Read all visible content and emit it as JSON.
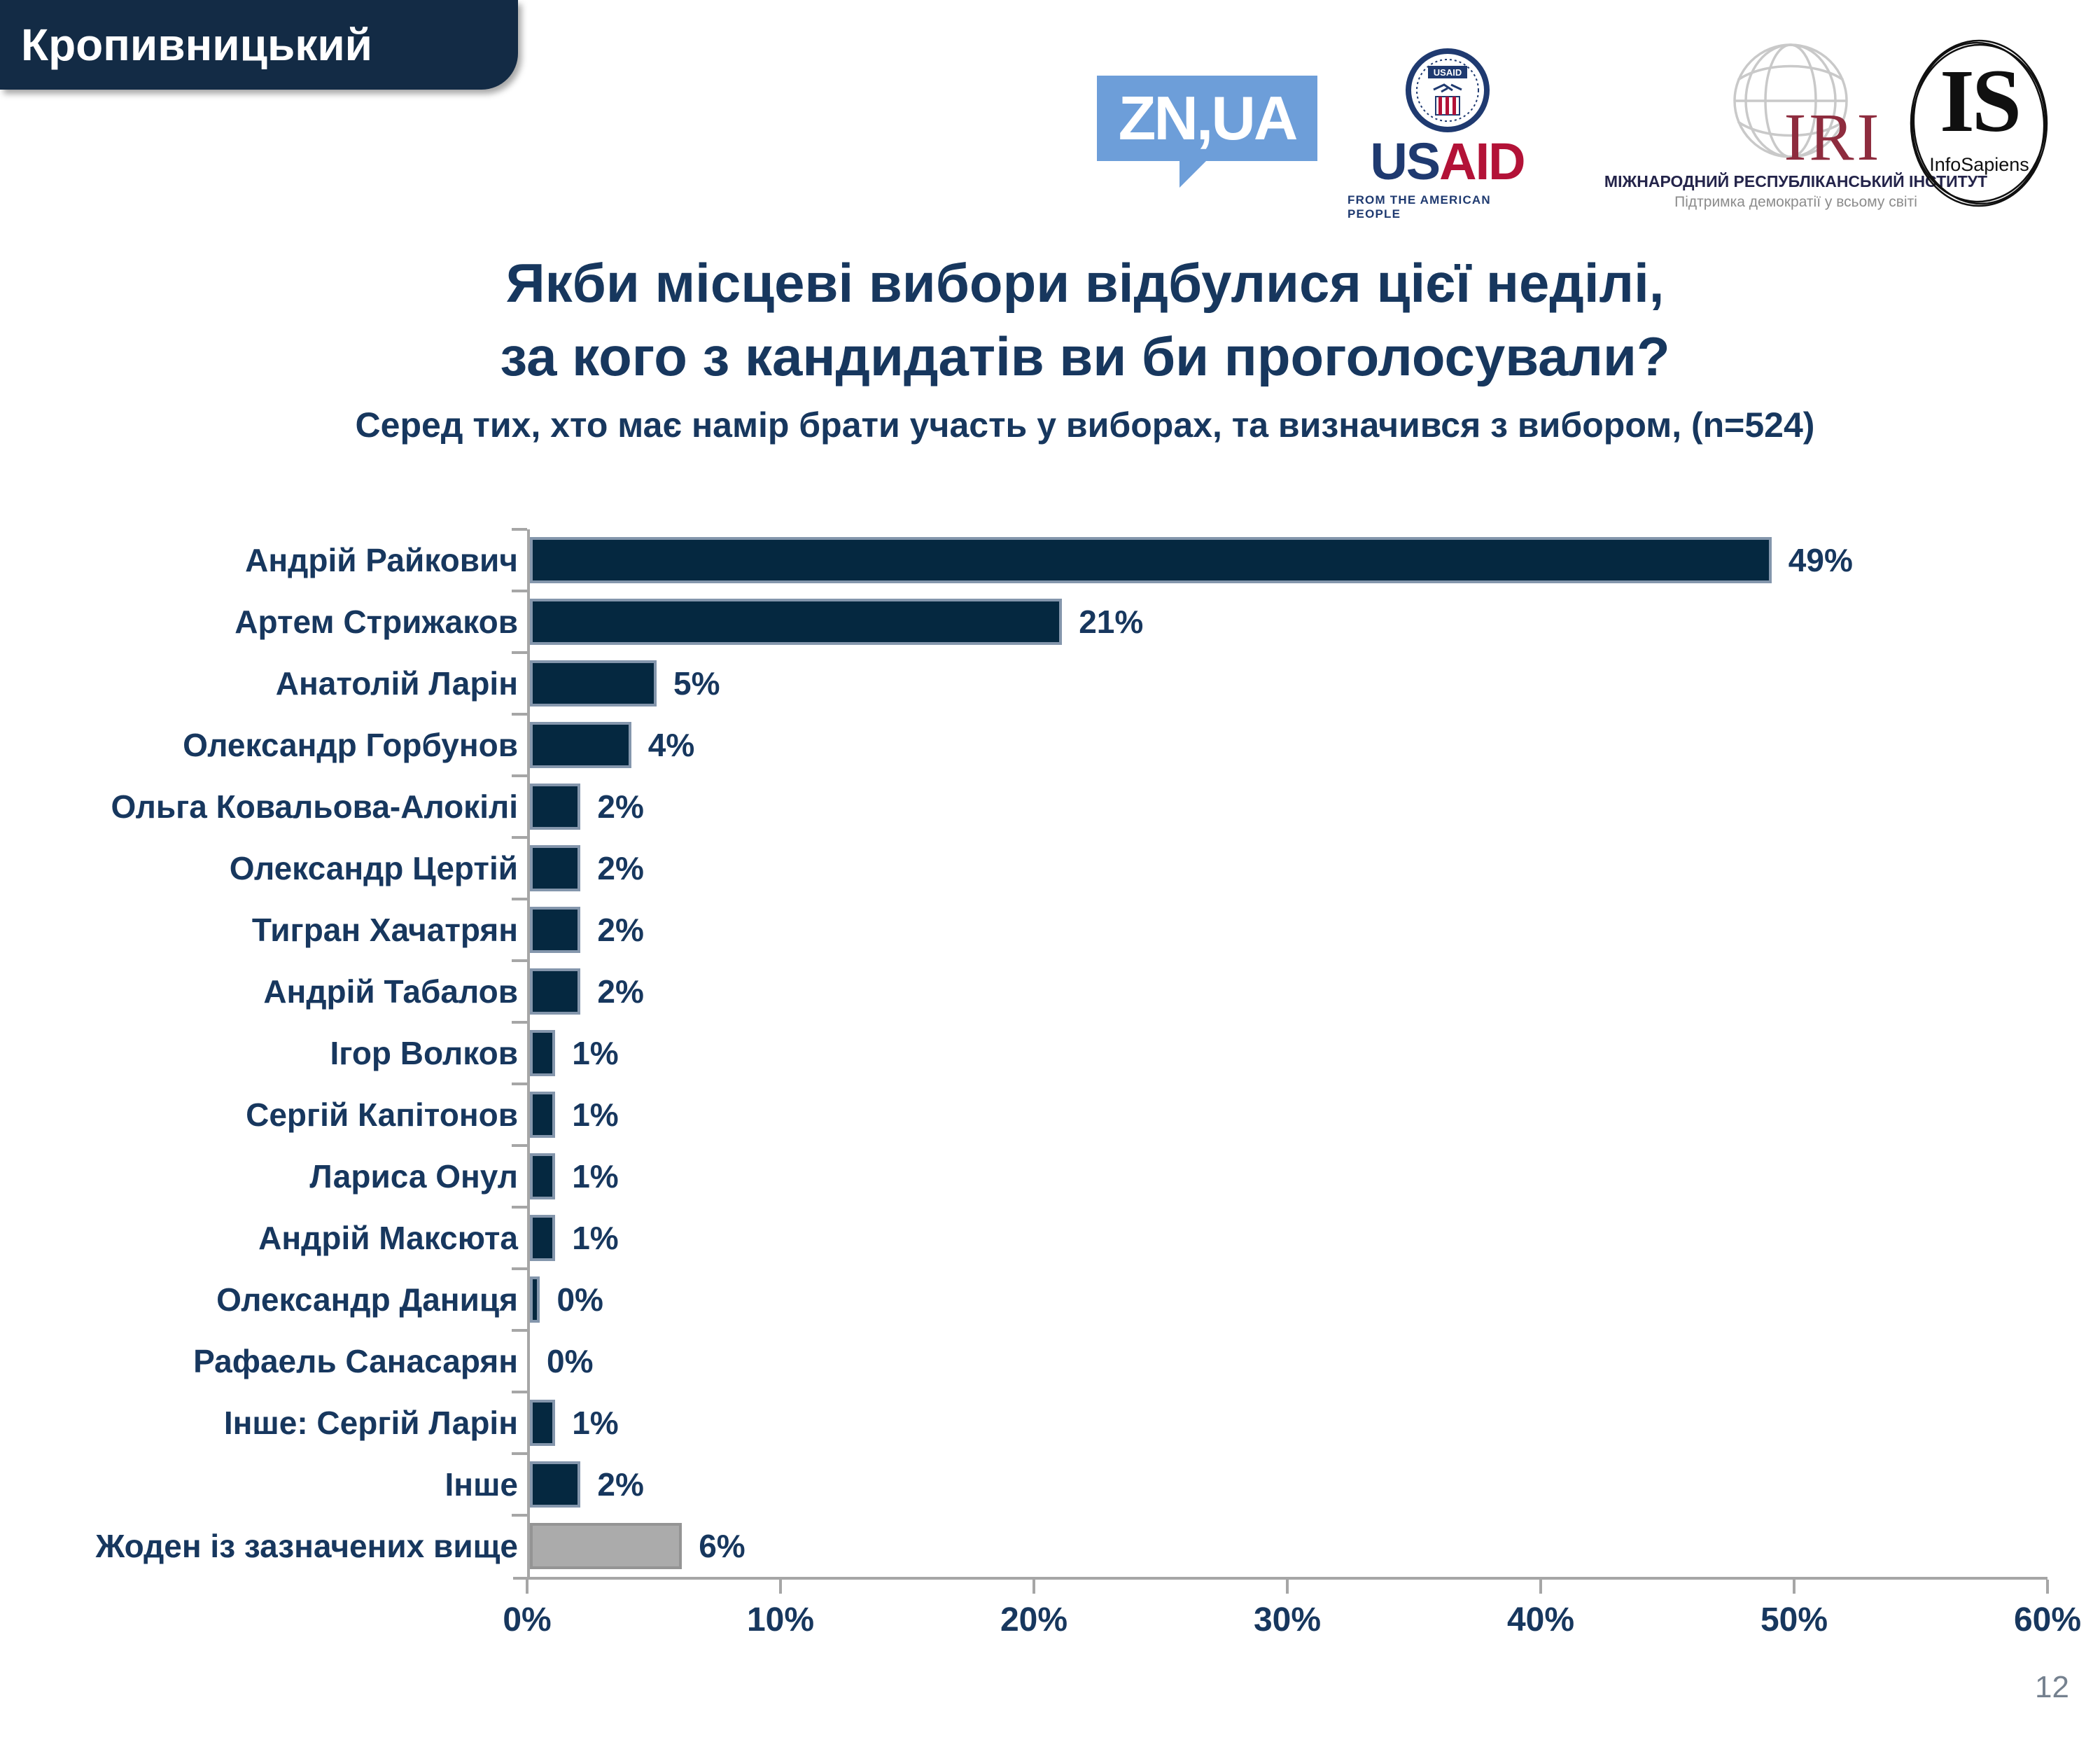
{
  "page": {
    "region_label": "Кропивницький",
    "page_number": "12"
  },
  "logos": {
    "znua": {
      "text": "ZN,UA"
    },
    "usaid": {
      "seal_text": "USAID",
      "wordmark_us": "US",
      "wordmark_aid": "AID",
      "tagline": "FROM THE AMERICAN PEOPLE"
    },
    "iri": {
      "abbr": "IRI",
      "caption_line1": "МІЖНАРОДНИЙ РЕСПУБЛІКАНСЬКИЙ ІНСТИТУТ",
      "caption_line2": "Підтримка демократії у всьому світі"
    },
    "infosapiens": {
      "abbr": "IS",
      "name": "InfoSapiens"
    }
  },
  "title": {
    "line1": "Якби місцеві вибори відбулися цієї неділі,",
    "line2": "за кого з кандидатів ви би проголосували?",
    "subtitle": "Серед тих, хто має намір брати участь у виборах, та визначився з вибором, (n=524)"
  },
  "chart_data": {
    "type": "bar",
    "orientation": "horizontal",
    "title": "Якби місцеві вибори відбулися цієї неділі, за кого з кандидатів ви би проголосували?",
    "subtitle": "Серед тих, хто має намір брати участь у виборах, та визначився з вибором, (n=524)",
    "categories": [
      "Андрій Райкович",
      "Артем Стрижаков",
      "Анатолій Ларін",
      "Олександр Горбунов",
      "Ольга Ковальова-Алокілі",
      "Олександр Цертій",
      "Тигран Хачатрян",
      "Андрій Табалов",
      "Ігор Волков",
      "Сергій Капітонов",
      "Лариса Онул",
      "Андрій Максюта",
      "Олександр Даниця",
      "Рафаель Санасарян",
      "Інше: Сергій Ларін",
      "Інше",
      "Жоден із зазначених вище"
    ],
    "values": [
      49,
      21,
      5,
      4,
      2,
      2,
      2,
      2,
      1,
      1,
      1,
      1,
      0,
      0,
      1,
      2,
      6
    ],
    "labels": [
      "49%",
      "21%",
      "5%",
      "4%",
      "2%",
      "2%",
      "2%",
      "2%",
      "1%",
      "1%",
      "1%",
      "1%",
      "0%",
      "0%",
      "1%",
      "2%",
      "6%"
    ],
    "bar_render_pct": [
      49,
      21,
      5,
      4,
      2,
      2,
      2,
      2,
      1,
      1,
      1,
      1,
      0.4,
      0,
      1,
      2,
      6
    ],
    "gray_category_index": 16,
    "x_ticks": [
      "0%",
      "10%",
      "20%",
      "30%",
      "40%",
      "50%",
      "60%"
    ],
    "xlim": [
      0,
      60
    ],
    "xlabel": "",
    "ylabel": "",
    "grid": false,
    "legend": null,
    "value_labels_shown": true
  },
  "colors": {
    "bar_fill": "#052840",
    "bar_border": "#8496ac",
    "gray_fill": "#ababab",
    "gray_border": "#949494",
    "navy_text": "#17375e",
    "axis": "#a6a6a6",
    "badge_bg": "#132b45",
    "zn_blue": "#6d9ed9",
    "usaid_navy": "#1f3a70",
    "usaid_red": "#b31237",
    "iri_maroon": "#8e2c3e",
    "iri_globe": "#c9c9c9",
    "page_number_gray": "#75818f"
  }
}
